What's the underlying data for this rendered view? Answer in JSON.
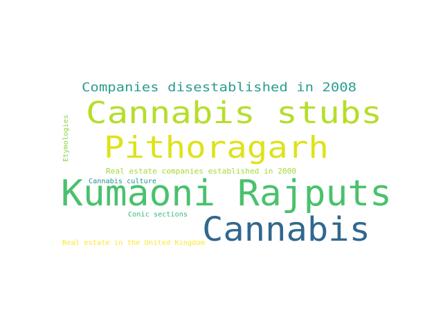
{
  "words": [
    {
      "text": "Companies disestablished in 2008",
      "color": "#2a9d8f"
    },
    {
      "text": "Cannabis stubs",
      "color": "#b5de2b"
    },
    {
      "text": "Pithoragarh",
      "color": "#dde318"
    },
    {
      "text": "Etymologies",
      "color": "#86d549"
    },
    {
      "text": "Real estate companies established in 2000",
      "color": "#a2da37"
    },
    {
      "text": "Cannabis culture",
      "color": "#21918c"
    },
    {
      "text": "Kumaoni Rajputs",
      "color": "#4ac16d"
    },
    {
      "text": "Conic sections",
      "color": "#35b779"
    },
    {
      "text": "Cannabis",
      "color": "#31688e"
    },
    {
      "text": "Real estate in the United Kingdom",
      "color": "#fde725"
    }
  ]
}
